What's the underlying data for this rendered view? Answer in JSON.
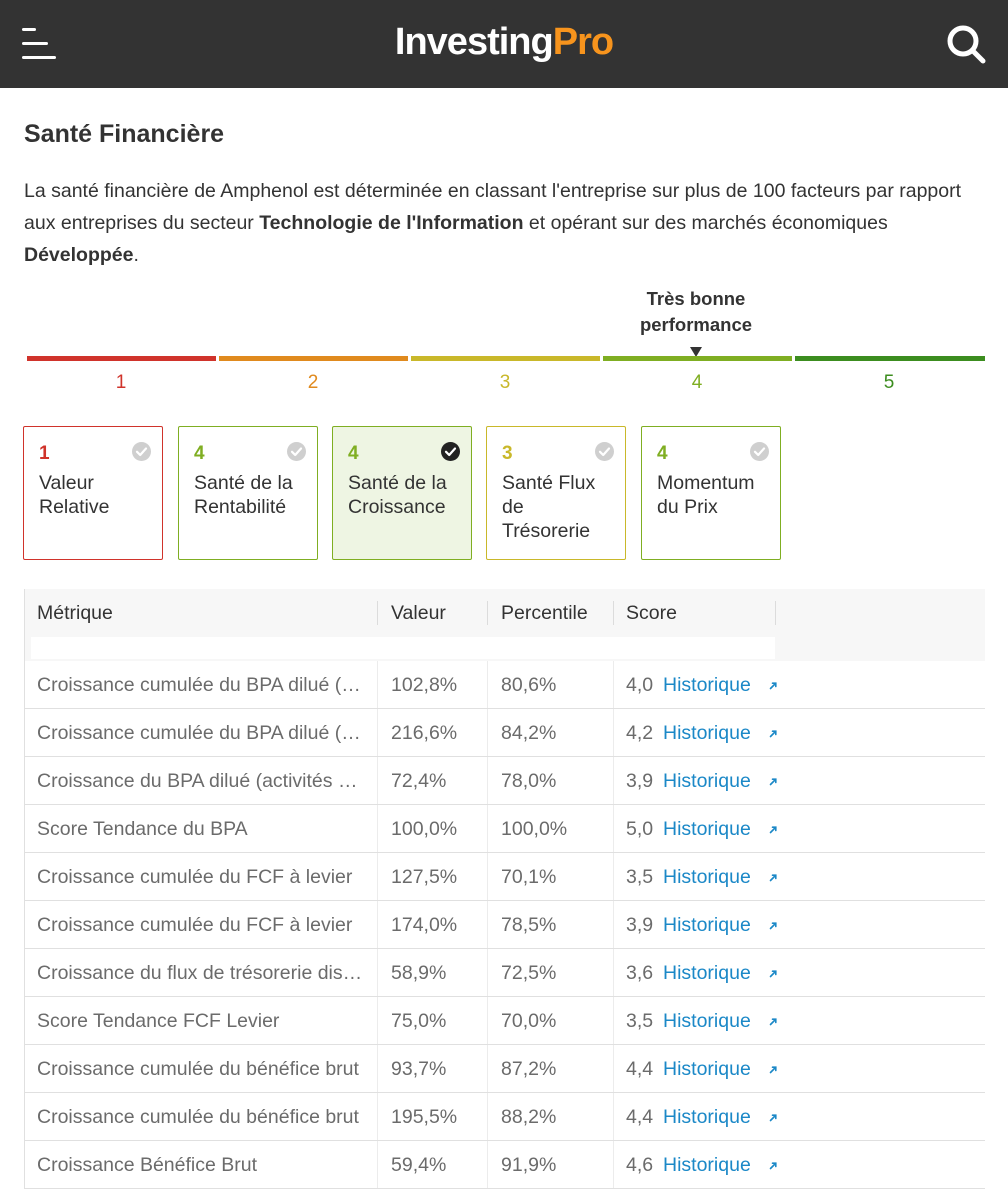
{
  "header": {
    "logo_part1": "Investing",
    "logo_part2": "Pro",
    "brand_color": "#f7941d",
    "menu_icon": "hamburger-menu-icon",
    "search_icon": "search-icon"
  },
  "section": {
    "title": "Santé Financière",
    "desc_text1": "La santé financière de Amphenol est déterminée en classant l'entreprise sur plus de 100 facteurs par rapport aux entreprises du secteur ",
    "desc_sector": "Technologie de l'Information",
    "desc_text2": " et opérant sur des marchés économiques ",
    "desc_market": "Développée",
    "desc_text3": "."
  },
  "scale": {
    "current_label_line1": "Très bonne",
    "current_label_line2": "performance",
    "current_score": 4,
    "segments": [
      {
        "label": "1",
        "color": "#d0332b"
      },
      {
        "label": "2",
        "color": "#e08a1e"
      },
      {
        "label": "3",
        "color": "#c9b82a"
      },
      {
        "label": "4",
        "color": "#7fae22"
      },
      {
        "label": "5",
        "color": "#3c8d1f"
      }
    ]
  },
  "cards": [
    {
      "score": "1",
      "line1": "Valeur",
      "line2": "Relative",
      "line3": "",
      "color": "#d0332b",
      "selected": false
    },
    {
      "score": "4",
      "line1": "Santé de la",
      "line2": "Rentabilité",
      "line3": "",
      "color": "#7fae22",
      "selected": false
    },
    {
      "score": "4",
      "line1": "Santé de la",
      "line2": "Croissance",
      "line3": "",
      "color": "#7fae22",
      "selected": true
    },
    {
      "score": "3",
      "line1": "Santé Flux",
      "line2": "de",
      "line3": "Trésorerie",
      "color": "#c9b82a",
      "selected": false
    },
    {
      "score": "4",
      "line1": "Momentum",
      "line2": "du Prix",
      "line3": "",
      "color": "#7fae22",
      "selected": false
    }
  ],
  "table": {
    "headers": {
      "metric": "Métrique",
      "value": "Valeur",
      "percentile": "Percentile",
      "score": "Score"
    },
    "link_label": "Historique",
    "rows": [
      {
        "metric": "Croissance cumulée du BPA dilué (activités poursuivies)",
        "value": "102,8%",
        "percentile": "80,6%",
        "score": "4,0"
      },
      {
        "metric": "Croissance cumulée du BPA dilué (activités poursuivies)",
        "value": "216,6%",
        "percentile": "84,2%",
        "score": "4,2"
      },
      {
        "metric": "Croissance du BPA dilué (activités poursuivies)",
        "value": "72,4%",
        "percentile": "78,0%",
        "score": "3,9"
      },
      {
        "metric": "Score Tendance du BPA",
        "value": "100,0%",
        "percentile": "100,0%",
        "score": "5,0"
      },
      {
        "metric": "Croissance cumulée du FCF à levier",
        "value": "127,5%",
        "percentile": "70,1%",
        "score": "3,5"
      },
      {
        "metric": "Croissance cumulée du FCF à levier",
        "value": "174,0%",
        "percentile": "78,5%",
        "score": "3,9"
      },
      {
        "metric": "Croissance du flux de trésorerie disponible",
        "value": "58,9%",
        "percentile": "72,5%",
        "score": "3,6"
      },
      {
        "metric": "Score Tendance FCF Levier",
        "value": "75,0%",
        "percentile": "70,0%",
        "score": "3,5"
      },
      {
        "metric": "Croissance cumulée du bénéfice brut",
        "value": "93,7%",
        "percentile": "87,2%",
        "score": "4,4"
      },
      {
        "metric": "Croissance cumulée du bénéfice brut",
        "value": "195,5%",
        "percentile": "88,2%",
        "score": "4,4"
      },
      {
        "metric": "Croissance Bénéfice Brut",
        "value": "59,4%",
        "percentile": "91,9%",
        "score": "4,6"
      }
    ]
  }
}
